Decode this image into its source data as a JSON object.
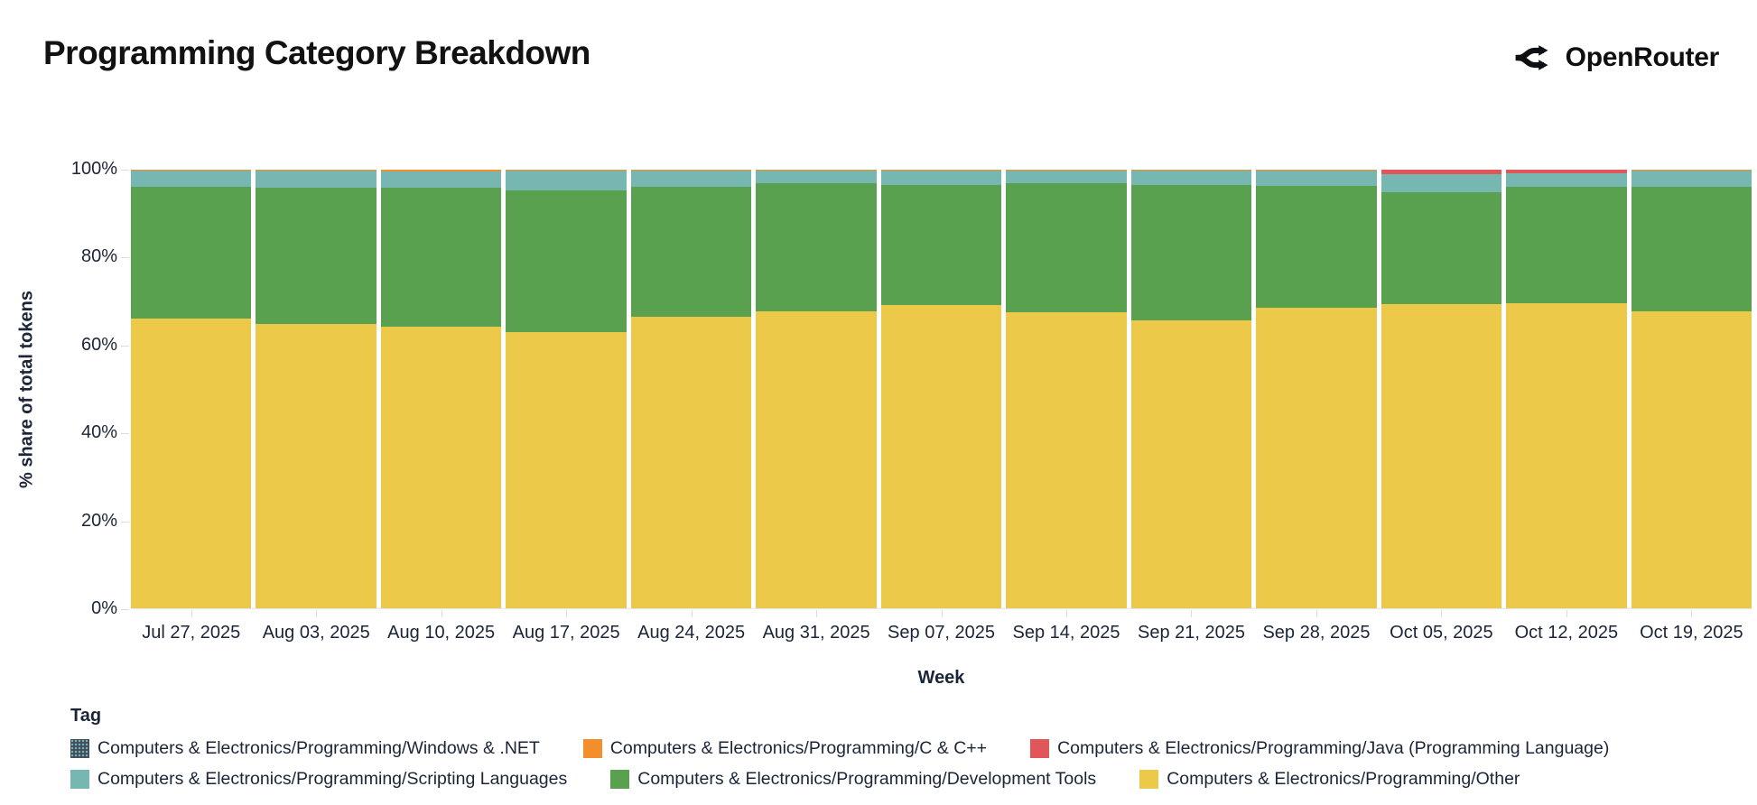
{
  "header": {
    "title": "Programming Category Breakdown",
    "logo_text": "OpenRouter",
    "logo_icon": "openrouter-fork-icon"
  },
  "axes": {
    "y_title": "% share of total tokens",
    "x_title": "Week",
    "y_ticks": [
      "100%",
      "80%",
      "60%",
      "40%",
      "20%",
      "0%"
    ]
  },
  "legend": {
    "title": "Tag",
    "items_per_row": 3
  },
  "chart_data": {
    "type": "bar",
    "subtype": "stacked-100-percent",
    "title": "Programming Category Breakdown",
    "xlabel": "Week",
    "ylabel": "% share of total tokens",
    "ylim": [
      0,
      100
    ],
    "grid": false,
    "legend_position": "bottom",
    "categories": [
      "Jul 27, 2025",
      "Aug 03, 2025",
      "Aug 10, 2025",
      "Aug 17, 2025",
      "Aug 24, 2025",
      "Aug 31, 2025",
      "Sep 07, 2025",
      "Sep 14, 2025",
      "Sep 21, 2025",
      "Sep 28, 2025",
      "Oct 05, 2025",
      "Oct 12, 2025",
      "Oct 19, 2025"
    ],
    "series": [
      {
        "name": "Computers & Electronics/Programming/Windows & .NET",
        "color": "#414e60",
        "pattern": "dots",
        "values": [
          0,
          0,
          0,
          0,
          0,
          0,
          0,
          0,
          0,
          0,
          0,
          0,
          0
        ]
      },
      {
        "name": "Computers & Electronics/Programming/C & C++",
        "color": "#f28e2b",
        "pattern": "solid",
        "values": [
          0.2,
          0.3,
          0.3,
          0.3,
          0.3,
          0.2,
          0.2,
          0.2,
          0.2,
          0.2,
          0,
          0,
          0.2
        ]
      },
      {
        "name": "Computers & Electronics/Programming/Java (Programming Language)",
        "color": "#e15759",
        "pattern": "solid",
        "values": [
          0,
          0,
          0,
          0,
          0,
          0,
          0,
          0,
          0,
          0,
          1.0,
          0.8,
          0
        ]
      },
      {
        "name": "Computers & Electronics/Programming/Scripting Languages",
        "color": "#76b7b2",
        "pattern": "solid",
        "values": [
          3.7,
          3.8,
          3.8,
          4.4,
          3.6,
          2.9,
          3.3,
          2.9,
          3.3,
          3.5,
          4.1,
          3.1,
          3.7
        ]
      },
      {
        "name": "Computers & Electronics/Programming/Development Tools",
        "color": "#59a14f",
        "pattern": "solid",
        "values": [
          30.0,
          31.0,
          31.6,
          32.3,
          29.6,
          29.3,
          27.3,
          29.5,
          30.8,
          27.8,
          25.5,
          26.5,
          28.3
        ]
      },
      {
        "name": "Computers & Electronics/Programming/Other",
        "color": "#edc949",
        "pattern": "solid",
        "values": [
          66.1,
          64.9,
          64.3,
          63.0,
          66.5,
          67.6,
          69.2,
          67.4,
          65.7,
          68.5,
          69.4,
          69.6,
          67.8
        ]
      }
    ],
    "stack_note": "series listed top-to-bottom of stack; Other is bottom segment"
  }
}
